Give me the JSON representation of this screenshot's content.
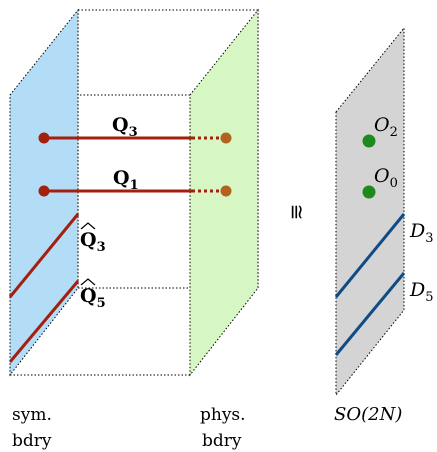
{
  "slab": {
    "operators": [
      {
        "symbol": "Q",
        "subscript": "3",
        "kind": "line"
      },
      {
        "symbol": "Q",
        "subscript": "1",
        "kind": "line"
      }
    ],
    "surface_operators": [
      {
        "symbol": "Q",
        "hat": true,
        "subscript": "3"
      },
      {
        "symbol": "Q",
        "hat": true,
        "subscript": "5"
      }
    ],
    "left_boundary_label": [
      "sym.",
      "bdry"
    ],
    "right_boundary_label": [
      "phys.",
      "bdry"
    ]
  },
  "equivalence_symbol": "≅",
  "theory_plane": {
    "label": "SO(2N)",
    "points": [
      {
        "symbol": "O",
        "subscript": "2"
      },
      {
        "symbol": "O",
        "subscript": "0"
      }
    ],
    "lines": [
      {
        "symbol": "D",
        "subscript": "3"
      },
      {
        "symbol": "D",
        "subscript": "5"
      }
    ]
  },
  "colors": {
    "sym_boundary_fill": "#b3dcf6",
    "phys_boundary_fill": "#d6f7c4",
    "line_operator": "#a31f0e",
    "end_point": "#b2641e",
    "plane_fill": "#d4d4d4",
    "plane_point": "#1e8a1e",
    "plane_line": "#0f4c86"
  }
}
